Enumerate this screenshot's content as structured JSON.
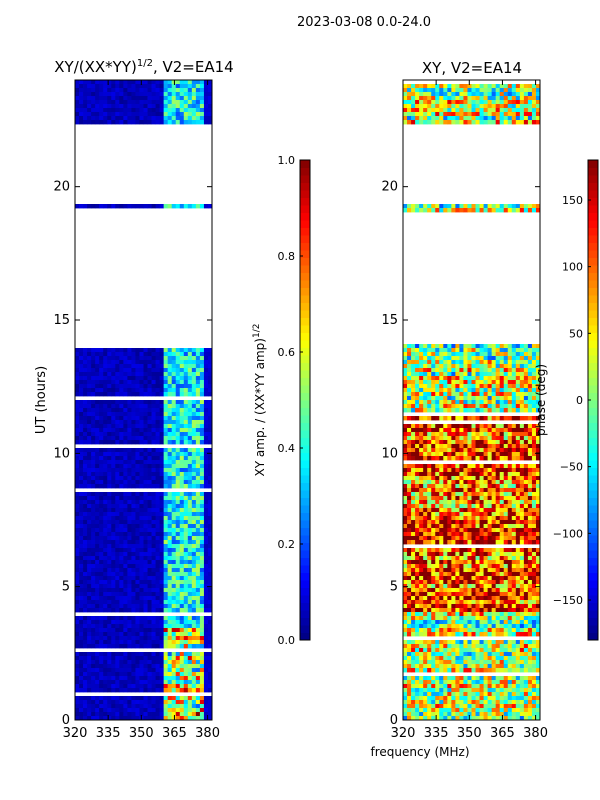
{
  "figure_title": "2023-03-08 0.0-24.0",
  "chart_data": [
    {
      "type": "heatmap",
      "title": "XY/(XX*YY)",
      "title_superscript": "1/2",
      "title_suffix": ", V2=EA14",
      "xlabel": "",
      "ylabel": "UT (hours)",
      "xlim": [
        320,
        382
      ],
      "ylim": [
        0,
        24
      ],
      "xticks": [
        "320",
        "335",
        "350",
        "365",
        "380"
      ],
      "xtick_values": [
        320,
        335,
        350,
        365,
        380
      ],
      "yticks": [
        "0",
        "5",
        "10",
        "15",
        "20"
      ],
      "ytick_values": [
        0,
        5,
        10,
        15,
        20
      ],
      "data_blocks": [
        [
          0,
          14.0
        ],
        [
          19.15,
          19.3
        ],
        [
          22.4,
          24.0
        ]
      ],
      "flagged_channels_mhz": [
        320,
        360
      ],
      "colorbar": {
        "label": "XY amp. / (XX*YY amp)",
        "label_superscript": "1/2",
        "range": [
          0.0,
          1.0
        ],
        "ticks": [
          "0.0",
          "0.2",
          "0.4",
          "0.6",
          "0.8",
          "1.0"
        ],
        "tick_values": [
          0.0,
          0.2,
          0.4,
          0.6,
          0.8,
          1.0
        ],
        "colormap": "jet"
      }
    },
    {
      "type": "heatmap",
      "title": "XY, V2=EA14",
      "xlabel": "frequency (MHz)",
      "ylabel": "",
      "xlim": [
        320,
        382
      ],
      "ylim": [
        0,
        24
      ],
      "xticks": [
        "320",
        "335",
        "350",
        "365",
        "380"
      ],
      "xtick_values": [
        320,
        335,
        350,
        365,
        380
      ],
      "yticks": [
        "0",
        "5",
        "10",
        "15",
        "20"
      ],
      "ytick_values": [
        0,
        5,
        10,
        15,
        20
      ],
      "data_blocks": [
        [
          0,
          14.1
        ],
        [
          19.1,
          19.3
        ],
        [
          22.4,
          24.0
        ]
      ],
      "colorbar": {
        "label": "phase (deg)",
        "range": [
          -180,
          180
        ],
        "ticks": [
          "−150",
          "−100",
          "−50",
          "0",
          "50",
          "100",
          "150"
        ],
        "tick_values": [
          -150,
          -100,
          -50,
          0,
          50,
          100,
          150
        ],
        "colormap": "jet"
      }
    }
  ]
}
